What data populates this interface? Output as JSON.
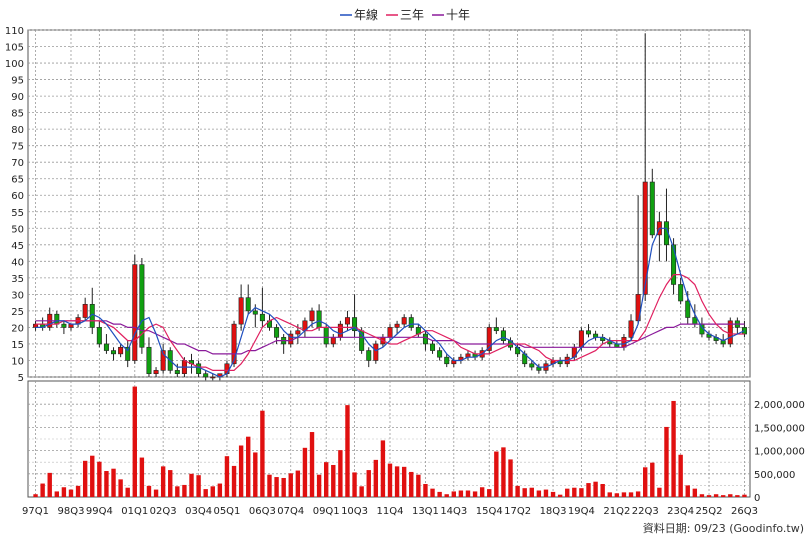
{
  "chart_data": {
    "type": "candlestick+bar",
    "legend": {
      "placement": "top-center",
      "items": [
        {
          "label": "年線",
          "color": "#1f4fbf"
        },
        {
          "label": "三年",
          "color": "#e02060"
        },
        {
          "label": "十年",
          "color": "#8a1a9a"
        }
      ]
    },
    "price_axis": {
      "ylim": [
        5,
        110
      ],
      "ticks": [
        110,
        105,
        100,
        95,
        90,
        85,
        80,
        75,
        70,
        65,
        60,
        55,
        50,
        45,
        40,
        35,
        30,
        25,
        20,
        15,
        10,
        5
      ]
    },
    "volume_axis": {
      "ylim": [
        0,
        2500000
      ],
      "ticks": [
        2000000,
        1500000,
        1000000,
        500000,
        0
      ],
      "tick_labels": [
        "2,000,000",
        "1,500,000",
        "1,000,000",
        "500,000",
        "0"
      ]
    },
    "x_tick_labels": [
      "97Q1",
      "98Q3",
      "99Q4",
      "01Q1",
      "02Q3",
      "03Q4",
      "05Q1",
      "06Q3",
      "07Q4",
      "09Q1",
      "10Q3",
      "11Q4",
      "13Q1",
      "14Q3",
      "15Q4",
      "17Q2",
      "18Q3",
      "19Q4",
      "21Q2",
      "22Q3",
      "23Q4",
      "25Q2",
      "26Q3"
    ],
    "footer": "資料日期: 09/23 (Goodinfo.tw)",
    "candles": [
      [
        20,
        22,
        19,
        21
      ],
      [
        21,
        23,
        19,
        20
      ],
      [
        20,
        26,
        19,
        24
      ],
      [
        24,
        25,
        20,
        21
      ],
      [
        21,
        22,
        18,
        20
      ],
      [
        20,
        21,
        19,
        21
      ],
      [
        21,
        24,
        20,
        23
      ],
      [
        23,
        29,
        22,
        27
      ],
      [
        27,
        32,
        18,
        20
      ],
      [
        20,
        22,
        14,
        15
      ],
      [
        15,
        18,
        12,
        13
      ],
      [
        13,
        14,
        10,
        12
      ],
      [
        12,
        15,
        11,
        14
      ],
      [
        14,
        16,
        8,
        10
      ],
      [
        10,
        42,
        9,
        39
      ],
      [
        39,
        41,
        12,
        14
      ],
      [
        14,
        17,
        5,
        6
      ],
      [
        6,
        8,
        5,
        7
      ],
      [
        7,
        15,
        6,
        13
      ],
      [
        13,
        14,
        6,
        7
      ],
      [
        7,
        9,
        5,
        6
      ],
      [
        6,
        11,
        5,
        10
      ],
      [
        10,
        12,
        6,
        9
      ],
      [
        9,
        10,
        5,
        6
      ],
      [
        6,
        7,
        4,
        5
      ],
      [
        5,
        6,
        4,
        5
      ],
      [
        5,
        6,
        4,
        6
      ],
      [
        6,
        10,
        5,
        9
      ],
      [
        9,
        22,
        8,
        21
      ],
      [
        21,
        33,
        19,
        29
      ],
      [
        29,
        33,
        24,
        25
      ],
      [
        25,
        27,
        20,
        24
      ],
      [
        24,
        32,
        20,
        22
      ],
      [
        22,
        24,
        19,
        20
      ],
      [
        20,
        21,
        15,
        17
      ],
      [
        17,
        18,
        12,
        15
      ],
      [
        15,
        19,
        14,
        18
      ],
      [
        18,
        21,
        15,
        19
      ],
      [
        19,
        23,
        17,
        22
      ],
      [
        22,
        26,
        20,
        25
      ],
      [
        25,
        27,
        19,
        20
      ],
      [
        20,
        21,
        14,
        15
      ],
      [
        15,
        18,
        14,
        17
      ],
      [
        17,
        22,
        16,
        21
      ],
      [
        21,
        25,
        19,
        23
      ],
      [
        23,
        30,
        17,
        19
      ],
      [
        19,
        20,
        12,
        13
      ],
      [
        13,
        14,
        8,
        10
      ],
      [
        10,
        16,
        9,
        15
      ],
      [
        15,
        18,
        14,
        17
      ],
      [
        17,
        21,
        16,
        20
      ],
      [
        20,
        22,
        18,
        21
      ],
      [
        21,
        24,
        20,
        23
      ],
      [
        23,
        24,
        19,
        20
      ],
      [
        20,
        21,
        17,
        18
      ],
      [
        18,
        19,
        13,
        15
      ],
      [
        15,
        16,
        12,
        13
      ],
      [
        13,
        14,
        10,
        11
      ],
      [
        11,
        12,
        8,
        9
      ],
      [
        9,
        11,
        8,
        10
      ],
      [
        10,
        12,
        9,
        11
      ],
      [
        11,
        13,
        10,
        12
      ],
      [
        12,
        13,
        10,
        11
      ],
      [
        11,
        14,
        10,
        13
      ],
      [
        13,
        21,
        12,
        20
      ],
      [
        20,
        23,
        18,
        19
      ],
      [
        19,
        20,
        15,
        16
      ],
      [
        16,
        17,
        13,
        14
      ],
      [
        14,
        15,
        11,
        12
      ],
      [
        12,
        13,
        8,
        9
      ],
      [
        9,
        10,
        7,
        8
      ],
      [
        8,
        9,
        6,
        7
      ],
      [
        7,
        10,
        6,
        9
      ],
      [
        9,
        11,
        8,
        10
      ],
      [
        10,
        11,
        8,
        9
      ],
      [
        9,
        12,
        8,
        11
      ],
      [
        11,
        15,
        10,
        14
      ],
      [
        14,
        20,
        13,
        19
      ],
      [
        19,
        21,
        17,
        18
      ],
      [
        18,
        19,
        16,
        17
      ],
      [
        17,
        18,
        15,
        16
      ],
      [
        16,
        17,
        14,
        15
      ],
      [
        15,
        16,
        14,
        14
      ],
      [
        14,
        18,
        13,
        17
      ],
      [
        17,
        24,
        16,
        22
      ],
      [
        22,
        60,
        21,
        30
      ],
      [
        30,
        109,
        28,
        64
      ],
      [
        64,
        68,
        47,
        48
      ],
      [
        48,
        55,
        40,
        52
      ],
      [
        52,
        62,
        40,
        45
      ],
      [
        45,
        47,
        30,
        33
      ],
      [
        33,
        35,
        27,
        28
      ],
      [
        28,
        31,
        21,
        23
      ],
      [
        23,
        27,
        20,
        21
      ],
      [
        21,
        23,
        17,
        18
      ],
      [
        18,
        19,
        16,
        17
      ],
      [
        17,
        18,
        15,
        16
      ],
      [
        16,
        18,
        14,
        15
      ],
      [
        15,
        23,
        14,
        22
      ],
      [
        22,
        23,
        18,
        20
      ],
      [
        20,
        22,
        17,
        18
      ]
    ],
    "ma_year": [
      20,
      20,
      21,
      22,
      22,
      21,
      21,
      22,
      24,
      23,
      21,
      18,
      15,
      13,
      18,
      22,
      23,
      18,
      12,
      10,
      8,
      8,
      8,
      8,
      7,
      6,
      5,
      6,
      10,
      17,
      24,
      26,
      25,
      24,
      22,
      19,
      17,
      17,
      19,
      21,
      22,
      21,
      19,
      18,
      19,
      20,
      18,
      15,
      13,
      14,
      16,
      18,
      20,
      21,
      21,
      19,
      17,
      15,
      12,
      10,
      10,
      11,
      11,
      12,
      14,
      16,
      17,
      16,
      14,
      12,
      10,
      8,
      8,
      9,
      10,
      10,
      11,
      14,
      16,
      17,
      17,
      16,
      15,
      15,
      16,
      21,
      33,
      45,
      50,
      50,
      44,
      36,
      29,
      24,
      20,
      18,
      17,
      16,
      17,
      18,
      19
    ],
    "ma_3y": [
      21,
      21,
      21,
      21,
      22,
      22,
      22,
      22,
      22,
      22,
      21,
      20,
      18,
      16,
      16,
      18,
      20,
      21,
      20,
      16,
      13,
      10,
      9,
      8,
      8,
      7,
      7,
      7,
      7,
      9,
      12,
      16,
      20,
      22,
      23,
      22,
      21,
      20,
      19,
      19,
      20,
      20,
      20,
      20,
      20,
      20,
      19,
      18,
      17,
      16,
      15,
      15,
      16,
      17,
      18,
      19,
      19,
      18,
      17,
      16,
      14,
      13,
      12,
      12,
      12,
      13,
      14,
      15,
      15,
      15,
      14,
      13,
      11,
      10,
      10,
      10,
      10,
      11,
      12,
      13,
      15,
      16,
      16,
      16,
      16,
      16,
      19,
      24,
      29,
      33,
      36,
      36,
      35,
      33,
      28,
      24,
      21,
      19,
      18,
      18,
      18
    ],
    "ma_10y": [
      22,
      22,
      22,
      22,
      22,
      22,
      22,
      22,
      22,
      22,
      22,
      21,
      21,
      20,
      20,
      19,
      19,
      18,
      17,
      16,
      15,
      15,
      14,
      13,
      13,
      12,
      12,
      12,
      12,
      12,
      13,
      13,
      14,
      15,
      16,
      16,
      16,
      17,
      17,
      17,
      17,
      17,
      17,
      17,
      17,
      17,
      17,
      17,
      17,
      17,
      17,
      17,
      17,
      17,
      17,
      17,
      16,
      16,
      16,
      16,
      15,
      15,
      15,
      15,
      15,
      15,
      15,
      15,
      15,
      14,
      14,
      14,
      14,
      14,
      14,
      14,
      14,
      14,
      14,
      14,
      14,
      14,
      14,
      14,
      15,
      16,
      17,
      18,
      19,
      20,
      20,
      21,
      21,
      21,
      21,
      21,
      21,
      21,
      21,
      21,
      21
    ],
    "volume": [
      60000,
      290000,
      520000,
      120000,
      210000,
      160000,
      240000,
      780000,
      890000,
      760000,
      560000,
      610000,
      380000,
      200000,
      2380000,
      850000,
      240000,
      160000,
      660000,
      580000,
      230000,
      260000,
      500000,
      470000,
      170000,
      230000,
      290000,
      880000,
      670000,
      1110000,
      1300000,
      960000,
      1860000,
      480000,
      430000,
      410000,
      510000,
      570000,
      1060000,
      1400000,
      480000,
      750000,
      690000,
      1010000,
      1980000,
      530000,
      230000,
      580000,
      800000,
      1220000,
      720000,
      660000,
      650000,
      540000,
      480000,
      280000,
      180000,
      110000,
      60000,
      120000,
      140000,
      140000,
      120000,
      210000,
      170000,
      980000,
      1070000,
      810000,
      240000,
      190000,
      200000,
      140000,
      160000,
      110000,
      50000,
      180000,
      200000,
      190000,
      300000,
      330000,
      280000,
      100000,
      80000,
      100000,
      100000,
      120000,
      640000,
      740000,
      200000,
      1510000,
      2070000,
      910000,
      250000,
      180000,
      60000,
      40000,
      60000,
      40000,
      60000,
      40000,
      50000
    ]
  }
}
